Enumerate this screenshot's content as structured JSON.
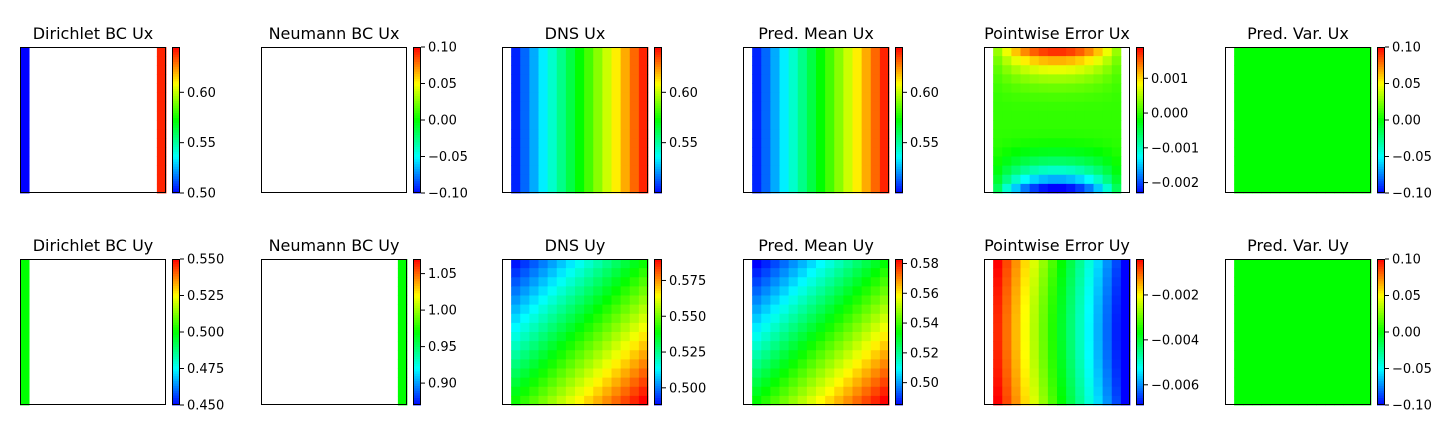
{
  "figure": {
    "colormap": [
      "#0000ff",
      "#00ffff",
      "#00ff00",
      "#ffff00",
      "#ff0000"
    ],
    "background": "#ffffff"
  },
  "chart_data": [
    {
      "type": "heatmap",
      "title": "Dirichlet BC Ux",
      "grid": [
        16,
        16
      ],
      "field": "dirichlet",
      "boundary": {
        "left": 0.5,
        "right": 0.64
      },
      "colorbar": {
        "min": 0.5,
        "max": 0.645,
        "ticks": [
          0.5,
          0.55,
          0.6
        ],
        "tick_labels": [
          "0.50",
          "0.55",
          "0.60"
        ]
      }
    },
    {
      "type": "heatmap",
      "title": "Neumann BC Ux",
      "grid": [
        16,
        16
      ],
      "field": "empty",
      "colorbar": {
        "min": -0.1,
        "max": 0.1,
        "ticks": [
          -0.1,
          -0.05,
          0,
          0.05,
          0.1
        ],
        "tick_labels": [
          "−0.10",
          "−0.05",
          "0.00",
          "0.05",
          "0.10"
        ]
      }
    },
    {
      "type": "heatmap",
      "title": "DNS Ux",
      "grid": [
        16,
        16
      ],
      "field": "linear_x",
      "range": [
        0.505,
        0.64
      ],
      "colorbar": {
        "min": 0.5,
        "max": 0.645,
        "ticks": [
          0.55,
          0.6
        ],
        "tick_labels": [
          "0.55",
          "0.60"
        ]
      }
    },
    {
      "type": "heatmap",
      "title": "Pred. Mean Ux",
      "grid": [
        16,
        16
      ],
      "field": "linear_x",
      "range": [
        0.505,
        0.64
      ],
      "colorbar": {
        "min": 0.5,
        "max": 0.645,
        "ticks": [
          0.55,
          0.6
        ],
        "tick_labels": [
          "0.55",
          "0.60"
        ]
      }
    },
    {
      "type": "heatmap",
      "title": "Pointwise Error Ux",
      "grid": [
        16,
        16
      ],
      "field": "error_ux",
      "top_peak": 0.0017,
      "bottom_peak": -0.0023,
      "colorbar": {
        "min": -0.0023,
        "max": 0.0019,
        "ticks": [
          -0.002,
          -0.001,
          0,
          0.001
        ],
        "tick_labels": [
          "−0.002",
          "−0.001",
          "0.000",
          "0.001"
        ]
      }
    },
    {
      "type": "heatmap",
      "title": "Pred. Var. Ux",
      "grid": [
        16,
        16
      ],
      "field": "constant",
      "value": 0,
      "colorbar": {
        "min": -0.1,
        "max": 0.1,
        "ticks": [
          -0.1,
          -0.05,
          0,
          0.05,
          0.1
        ],
        "tick_labels": [
          "−0.10",
          "−0.05",
          "0.00",
          "0.05",
          "0.10"
        ]
      }
    },
    {
      "type": "heatmap",
      "title": "Dirichlet BC Uy",
      "grid": [
        16,
        16
      ],
      "field": "dirichlet",
      "boundary": {
        "left": 0.5
      },
      "colorbar": {
        "min": 0.45,
        "max": 0.55,
        "ticks": [
          0.45,
          0.475,
          0.5,
          0.525,
          0.55
        ],
        "tick_labels": [
          "0.450",
          "0.475",
          "0.500",
          "0.525",
          "0.550"
        ]
      }
    },
    {
      "type": "heatmap",
      "title": "Neumann BC Uy",
      "grid": [
        16,
        16
      ],
      "field": "dirichlet",
      "boundary": {
        "right": 0.97
      },
      "colorbar": {
        "min": 0.87,
        "max": 1.07,
        "ticks": [
          0.9,
          0.95,
          1.0,
          1.05
        ],
        "tick_labels": [
          "0.90",
          "0.95",
          "1.00",
          "1.05"
        ]
      }
    },
    {
      "type": "heatmap",
      "title": "DNS Uy",
      "grid": [
        16,
        16
      ],
      "field": "diagonal",
      "range": [
        0.49,
        0.59
      ],
      "colorbar": {
        "min": 0.488,
        "max": 0.59,
        "ticks": [
          0.5,
          0.525,
          0.55,
          0.575
        ],
        "tick_labels": [
          "0.500",
          "0.525",
          "0.550",
          "0.575"
        ]
      }
    },
    {
      "type": "heatmap",
      "title": "Pred. Mean Uy",
      "grid": [
        16,
        16
      ],
      "field": "diagonal",
      "range": [
        0.485,
        0.583
      ],
      "colorbar": {
        "min": 0.485,
        "max": 0.583,
        "ticks": [
          0.5,
          0.52,
          0.54,
          0.56,
          0.58
        ],
        "tick_labels": [
          "0.50",
          "0.52",
          "0.54",
          "0.56",
          "0.58"
        ]
      }
    },
    {
      "type": "heatmap",
      "title": "Pointwise Error Uy",
      "grid": [
        16,
        16
      ],
      "field": "error_uy",
      "range": [
        -0.0069,
        -0.0004
      ],
      "colorbar": {
        "min": -0.0069,
        "max": -0.0004,
        "ticks": [
          -0.006,
          -0.004,
          -0.002
        ],
        "tick_labels": [
          "−0.006",
          "−0.004",
          "−0.002"
        ]
      }
    },
    {
      "type": "heatmap",
      "title": "Pred. Var. Uy",
      "grid": [
        16,
        16
      ],
      "field": "constant",
      "value": 0,
      "colorbar": {
        "min": -0.1,
        "max": 0.1,
        "ticks": [
          -0.1,
          -0.05,
          0,
          0.05,
          0.1
        ],
        "tick_labels": [
          "−0.10",
          "−0.05",
          "0.00",
          "0.05",
          "0.10"
        ]
      }
    }
  ]
}
